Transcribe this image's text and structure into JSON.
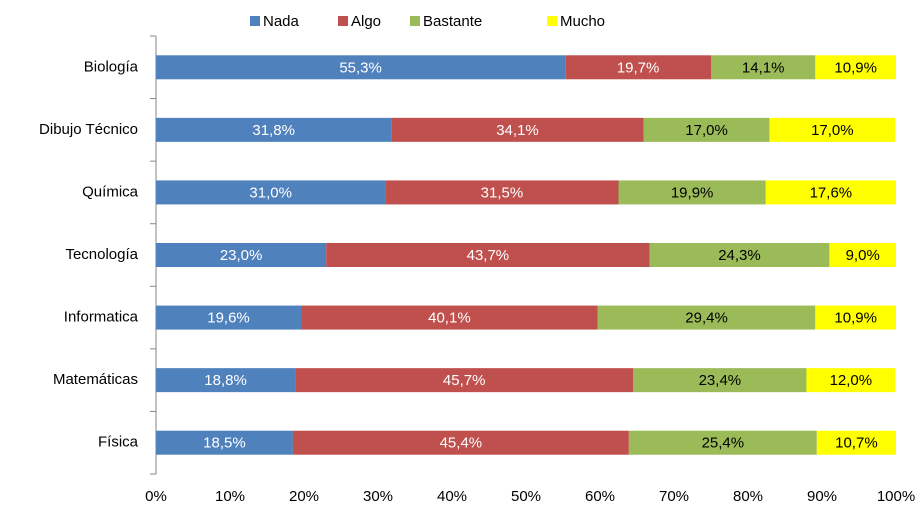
{
  "chart_data": {
    "type": "stacked_barh",
    "categories": [
      "Biología",
      "Dibujo Técnico",
      "Química",
      "Tecnología",
      "Informatica",
      "Matemáticas",
      "Física"
    ],
    "series": [
      {
        "name": "Nada",
        "color": "#4f81bd",
        "label_color": "#ffffff",
        "values": [
          55.3,
          31.8,
          31.0,
          23.0,
          19.6,
          18.8,
          18.5
        ],
        "value_labels": [
          "55,3%",
          "31,8%",
          "31,0%",
          "23,0%",
          "19,6%",
          "18,8%",
          "18,5%"
        ]
      },
      {
        "name": "Algo",
        "color": "#c0504d",
        "label_color": "#ffffff",
        "values": [
          19.7,
          34.1,
          31.5,
          43.7,
          40.1,
          45.7,
          45.4
        ],
        "value_labels": [
          "19,7%",
          "34,1%",
          "31,5%",
          "43,7%",
          "40,1%",
          "45,7%",
          "45,4%"
        ]
      },
      {
        "name": "Bastante",
        "color": "#9bbb59",
        "label_color": "#000000",
        "values": [
          14.1,
          17.0,
          19.9,
          24.3,
          29.4,
          23.4,
          25.4
        ],
        "value_labels": [
          "14,1%",
          "17,0%",
          "19,9%",
          "24,3%",
          "29,4%",
          "23,4%",
          "25,4%"
        ]
      },
      {
        "name": "Mucho",
        "color": "#ffff00",
        "label_color": "#000000",
        "values": [
          10.9,
          17.0,
          17.6,
          9.0,
          10.9,
          12.0,
          10.7
        ],
        "value_labels": [
          "10,9%",
          "17,0%",
          "17,6%",
          "9,0%",
          "10,9%",
          "12,0%",
          "10,7%"
        ]
      }
    ],
    "xlim": [
      0,
      100
    ],
    "xticks": [
      {
        "value": 0,
        "label": "0%"
      },
      {
        "value": 10,
        "label": "10%"
      },
      {
        "value": 20,
        "label": "20%"
      },
      {
        "value": 30,
        "label": "30%"
      },
      {
        "value": 40,
        "label": "40%"
      },
      {
        "value": 50,
        "label": "50%"
      },
      {
        "value": 60,
        "label": "60%"
      },
      {
        "value": 70,
        "label": "70%"
      },
      {
        "value": 80,
        "label": "80%"
      },
      {
        "value": 90,
        "label": "90%"
      },
      {
        "value": 100,
        "label": "100%"
      }
    ],
    "legend": "top",
    "grid": false
  }
}
